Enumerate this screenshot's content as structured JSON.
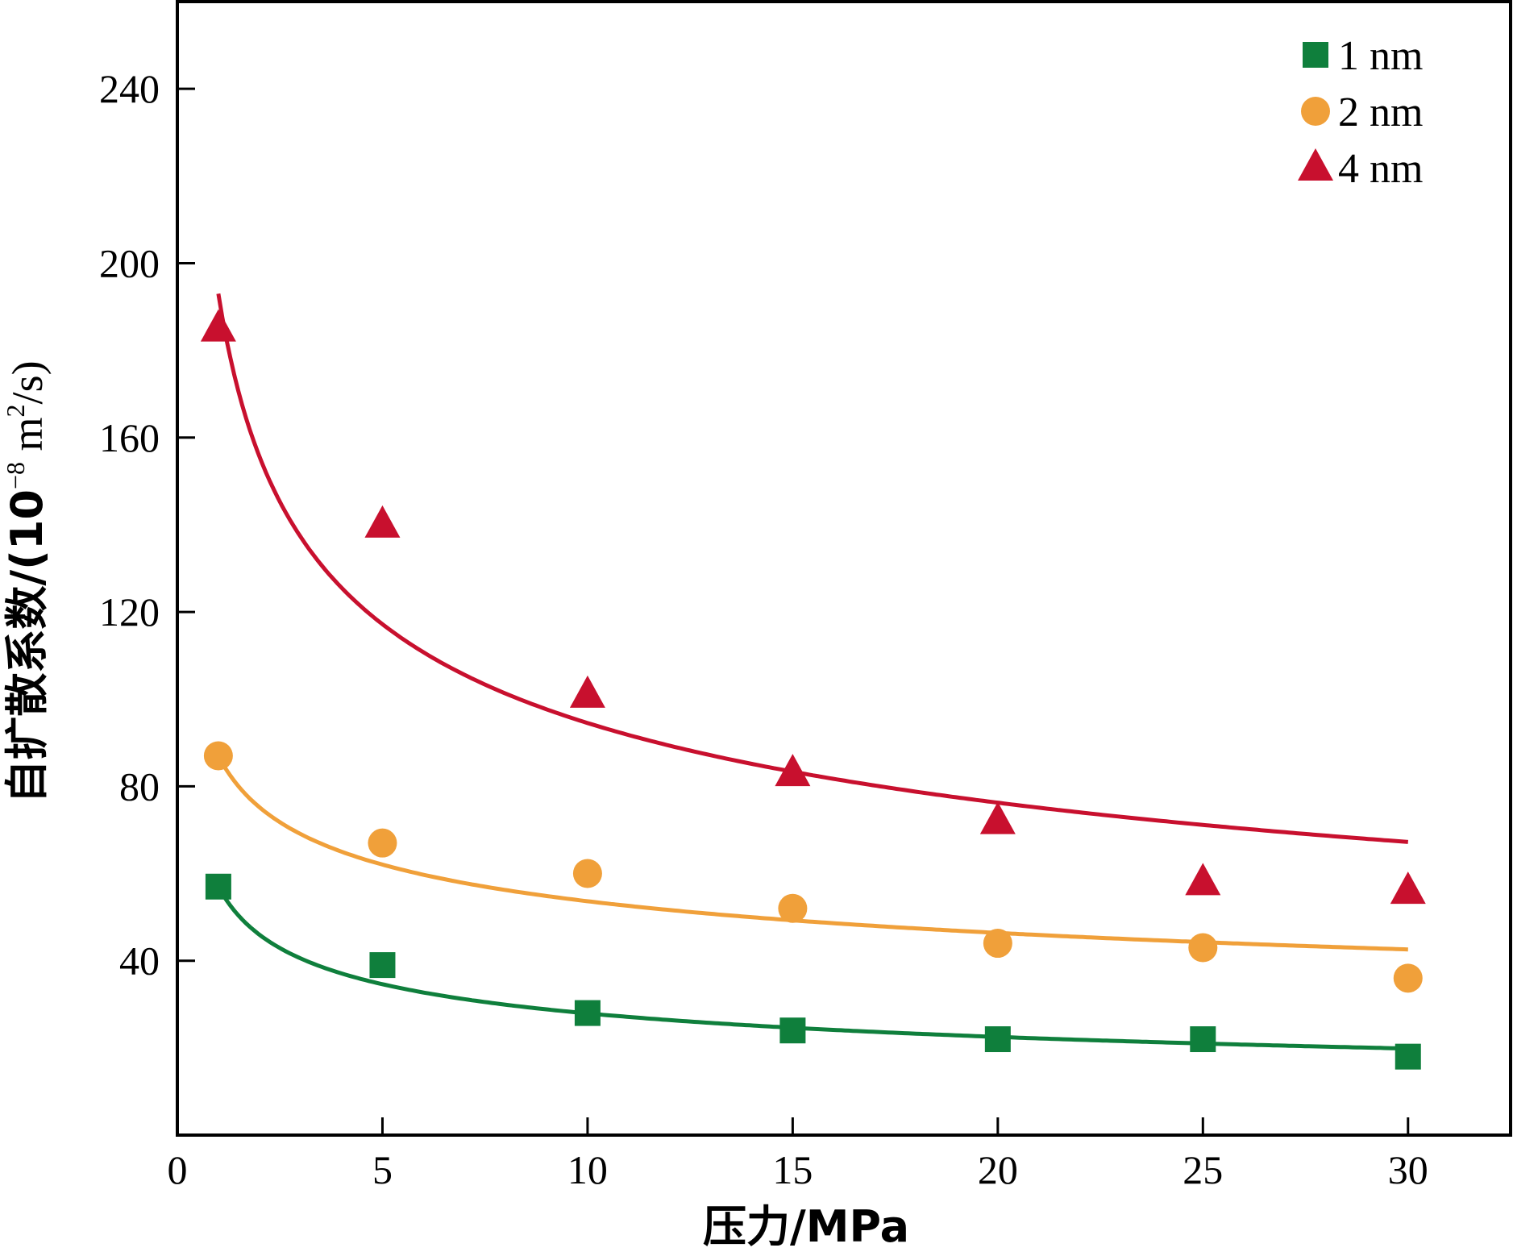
{
  "chart_data": {
    "type": "scatter",
    "title": "",
    "xlabel": "压力/MPa",
    "ylabel_main": "自扩散系数/(10",
    "ylabel_exp": "−8",
    "ylabel_unit": " m",
    "ylabel_unit_exp": "2",
    "ylabel_tail": "/s)",
    "xlim": [
      0,
      32.5
    ],
    "ylim": [
      0,
      260
    ],
    "x_ticks": [
      0,
      5,
      10,
      15,
      20,
      25,
      30
    ],
    "y_ticks": [
      40,
      80,
      120,
      160,
      200,
      240
    ],
    "x_tick_labels": [
      "0",
      "5",
      "10",
      "15",
      "20",
      "25",
      "30"
    ],
    "y_tick_labels": [
      "40",
      "80",
      "120",
      "160",
      "200",
      "240"
    ],
    "legend_position": "top-right",
    "grid": false,
    "x": [
      1,
      5,
      10,
      15,
      20,
      25,
      30
    ],
    "series": [
      {
        "name": "1 nm",
        "marker": "square",
        "color": "#0f7f3c",
        "values": [
          57,
          39,
          28,
          24,
          22,
          22,
          18
        ],
        "fit": {
          "a": 57,
          "b": 0.31
        }
      },
      {
        "name": "2 nm",
        "marker": "circle",
        "color": "#f0a03a",
        "values": [
          87,
          67,
          60,
          52,
          44,
          43,
          36
        ],
        "fit": {
          "a": 87,
          "b": 0.21
        }
      },
      {
        "name": "4 nm",
        "marker": "triangle",
        "color": "#c8102e",
        "values": [
          185,
          140,
          101,
          83,
          72,
          58,
          56
        ],
        "fit": {
          "a": 193,
          "b": 0.31
        }
      }
    ]
  }
}
